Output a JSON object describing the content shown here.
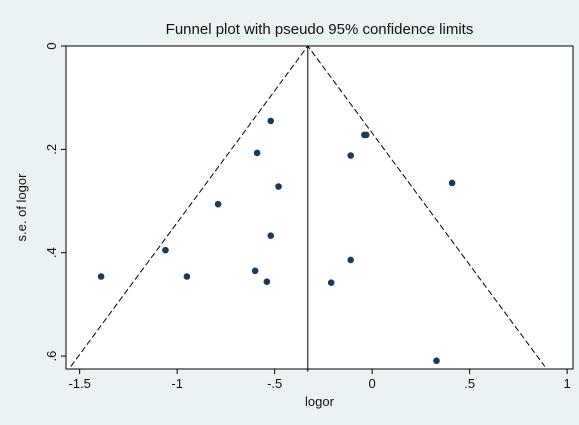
{
  "chart_data": {
    "type": "scatter",
    "title": "Funnel plot with pseudo 95% confidence limits",
    "xlabel": "logor",
    "ylabel": "s.e. of logor",
    "xlim": [
      -1.57,
      1.03
    ],
    "ylim": [
      0.0,
      0.625
    ],
    "y_reversed": true,
    "grid": false,
    "legend": "none",
    "x_ticks": [
      -1.5,
      -1,
      -0.5,
      0,
      0.5,
      1
    ],
    "x_tick_labels": [
      "-1.5",
      "-1",
      "-.5",
      "0",
      ".5",
      "1"
    ],
    "y_ticks": [
      0,
      0.2,
      0.4,
      0.6
    ],
    "y_tick_labels": [
      "0",
      ".2",
      ".4",
      ".6"
    ],
    "pooled_estimate": -0.33,
    "limit_z": 1.96,
    "limit_se_max": 0.62,
    "points": [
      {
        "x": -0.52,
        "y": 0.145
      },
      {
        "x": -0.59,
        "y": 0.207
      },
      {
        "x": -0.48,
        "y": 0.272
      },
      {
        "x": -0.79,
        "y": 0.306
      },
      {
        "x": -0.52,
        "y": 0.367
      },
      {
        "x": -1.06,
        "y": 0.395
      },
      {
        "x": -0.6,
        "y": 0.435
      },
      {
        "x": -1.39,
        "y": 0.446
      },
      {
        "x": -0.95,
        "y": 0.446
      },
      {
        "x": -0.54,
        "y": 0.456
      },
      {
        "x": -0.04,
        "y": 0.172
      },
      {
        "x": -0.03,
        "y": 0.172
      },
      {
        "x": -0.11,
        "y": 0.212
      },
      {
        "x": 0.41,
        "y": 0.265
      },
      {
        "x": -0.11,
        "y": 0.414
      },
      {
        "x": -0.21,
        "y": 0.458
      },
      {
        "x": 0.33,
        "y": 0.609
      }
    ],
    "colors": {
      "marker": "#1a3a5c",
      "plot_background": "#ffffff",
      "outer_background": "#eaf2f3"
    }
  }
}
